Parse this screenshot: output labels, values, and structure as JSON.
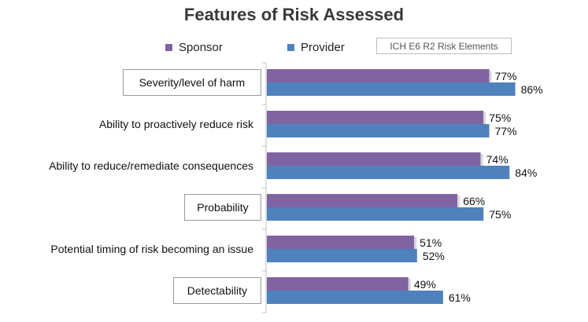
{
  "chart_data": {
    "type": "bar",
    "orientation": "horizontal",
    "title": "Features of Risk Assessed",
    "categories": [
      "Severity/level of harm",
      "Ability to proactively reduce risk",
      "Ability to reduce/remediate consequences",
      "Probability",
      "Potential timing of risk becoming an issue",
      "Detectability"
    ],
    "boxed_categories": [
      0,
      3,
      5
    ],
    "series": [
      {
        "name": "Sponsor",
        "color": "#8064a2",
        "values": [
          77,
          75,
          74,
          66,
          51,
          49
        ]
      },
      {
        "name": "Provider",
        "color": "#4f81bd",
        "values": [
          86,
          77,
          84,
          75,
          52,
          61
        ]
      }
    ],
    "value_suffix": "%",
    "xlim": [
      0,
      100
    ],
    "xlabel": "",
    "ylabel": "",
    "legend_note": "ICH E6 R2 Risk Elements"
  }
}
